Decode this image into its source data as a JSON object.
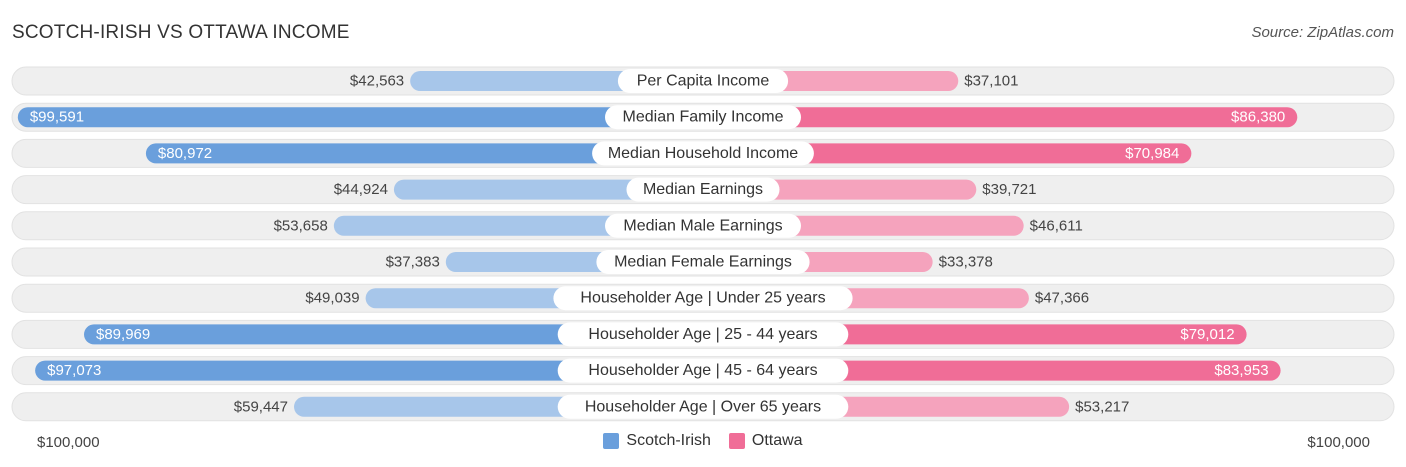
{
  "header": {
    "title": "SCOTCH-IRISH VS OTTAWA INCOME",
    "source": "Source: ZipAtlas.com"
  },
  "axis": {
    "left_label": "$100,000",
    "right_label": "$100,000"
  },
  "legend": {
    "items": [
      {
        "label": "Scotch-Irish",
        "color": "#6a9fdc"
      },
      {
        "label": "Ottawa",
        "color": "#f06d97"
      }
    ]
  },
  "colors": {
    "left_strong": "#6a9fdc",
    "left_light": "#a7c6ea",
    "right_strong": "#f06d97",
    "right_light": "#f5a3bd",
    "track": "#efefef"
  },
  "chart_data": {
    "type": "bar",
    "orientation": "horizontal-diverging",
    "title": "SCOTCH-IRISH VS OTTAWA INCOME",
    "xlim": [
      0,
      100000
    ],
    "categories": [
      "Per Capita Income",
      "Median Family Income",
      "Median Household Income",
      "Median Earnings",
      "Median Male Earnings",
      "Median Female Earnings",
      "Householder Age | Under 25 years",
      "Householder Age | 25 - 44 years",
      "Householder Age | 45 - 64 years",
      "Householder Age | Over 65 years"
    ],
    "series": [
      {
        "name": "Scotch-Irish",
        "values": [
          42563,
          99591,
          80972,
          44924,
          53658,
          37383,
          49039,
          89969,
          97073,
          59447
        ],
        "labels": [
          "$42,563",
          "$99,591",
          "$80,972",
          "$44,924",
          "$53,658",
          "$37,383",
          "$49,039",
          "$89,969",
          "$97,073",
          "$59,447"
        ]
      },
      {
        "name": "Ottawa",
        "values": [
          37101,
          86380,
          70984,
          39721,
          46611,
          33378,
          47366,
          79012,
          83953,
          53217
        ],
        "labels": [
          "$37,101",
          "$86,380",
          "$70,984",
          "$39,721",
          "$46,611",
          "$33,378",
          "$47,366",
          "$79,012",
          "$83,953",
          "$53,217"
        ]
      }
    ]
  }
}
